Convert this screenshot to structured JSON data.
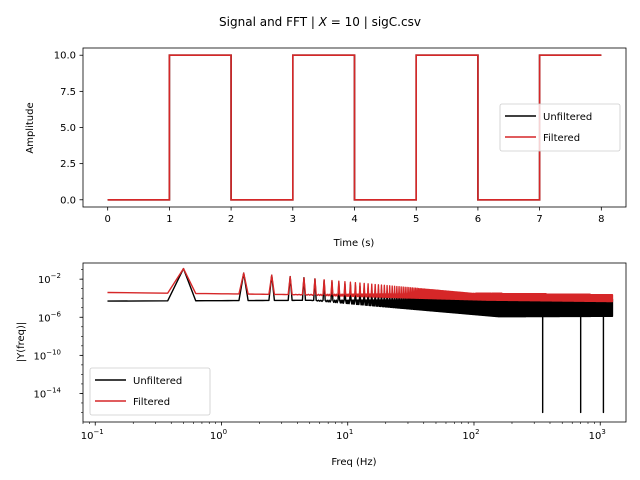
{
  "figure": {
    "suptitle": "Signal and FFT | X = 10 | sigC.csv",
    "suptitle_parts": [
      "Signal and FFT | ",
      "X",
      " = 10 | sigC.csv"
    ]
  },
  "colors": {
    "unfiltered": "#000000",
    "filtered": "#d62728"
  },
  "chart_data": [
    {
      "type": "line",
      "xlabel": "Time (s)",
      "ylabel": "Amplitude",
      "xlim": [
        -0.4,
        8.4
      ],
      "ylim": [
        -0.5,
        10.5
      ],
      "xticks": [
        0,
        1,
        2,
        3,
        4,
        5,
        6,
        7,
        8
      ],
      "xtick_labels": [
        "0",
        "1",
        "2",
        "3",
        "4",
        "5",
        "6",
        "7",
        "8"
      ],
      "yticks": [
        0,
        2.5,
        5,
        7.5,
        10
      ],
      "ytick_labels": [
        "0.0",
        "2.5",
        "5.0",
        "7.5",
        "10.0"
      ],
      "legend": {
        "placement": "center-right",
        "entries": [
          "Unfiltered",
          "Filtered"
        ]
      },
      "series": [
        {
          "name": "Unfiltered",
          "color": "#000000",
          "x": [
            0,
            1,
            1,
            2,
            2,
            3,
            3,
            4,
            4,
            5,
            5,
            6,
            6,
            7,
            7,
            8
          ],
          "y": [
            0,
            0,
            10,
            10,
            0,
            0,
            10,
            10,
            0,
            0,
            10,
            10,
            0,
            0,
            10,
            10
          ]
        },
        {
          "name": "Filtered",
          "color": "#d62728",
          "x": [
            0,
            1,
            1,
            2,
            2,
            3,
            3,
            4,
            4,
            5,
            5,
            6,
            6,
            7,
            7,
            8
          ],
          "y": [
            0,
            0,
            10,
            10,
            0,
            0,
            10,
            10,
            0,
            0,
            10,
            10,
            0,
            0,
            10,
            10
          ]
        }
      ]
    },
    {
      "type": "line",
      "xscale": "log",
      "yscale": "log",
      "xlabel": "Freq (Hz)",
      "ylabel": "|Y(freq)|",
      "xlim": [
        0.08,
        1600
      ],
      "ylim": [
        1e-17,
        0.5
      ],
      "xticks": [
        0.1,
        1,
        10,
        100,
        1000
      ],
      "xtick_labels": [
        "10",
        "10",
        "10",
        "10",
        "10"
      ],
      "xtick_exponents": [
        "−1",
        "0",
        "1",
        "2",
        "3"
      ],
      "yticks": [
        1e-14,
        1e-10,
        1e-06,
        0.01
      ],
      "ytick_labels": [
        "10",
        "10",
        "10",
        "10"
      ],
      "ytick_exponents": [
        "−14",
        "−10",
        "−6",
        "−2"
      ],
      "legend": {
        "placement": "lower-left",
        "entries": [
          "Unfiltered",
          "Filtered"
        ]
      },
      "fundamental_hz": 0.5,
      "fmax_hz": 1250,
      "series": [
        {
          "name": "Unfiltered",
          "color": "#000000",
          "peaks": {
            "odd_harmonic_amplitude_at_0.5Hz": 0.13,
            "decay": "1/f"
          },
          "floor_low_freq": 5e-05,
          "floor_high_freq": 8e-05,
          "deep_nulls_hz": [
            350,
            700,
            1060
          ],
          "null_depth": 1e-16
        },
        {
          "name": "Filtered",
          "color": "#d62728",
          "peaks": {
            "odd_harmonic_amplitude_at_0.5Hz": 0.13,
            "decay": "1/f"
          },
          "floor_low_freq": 0.0004,
          "floor_high_freq": 0.0001
        }
      ]
    }
  ]
}
